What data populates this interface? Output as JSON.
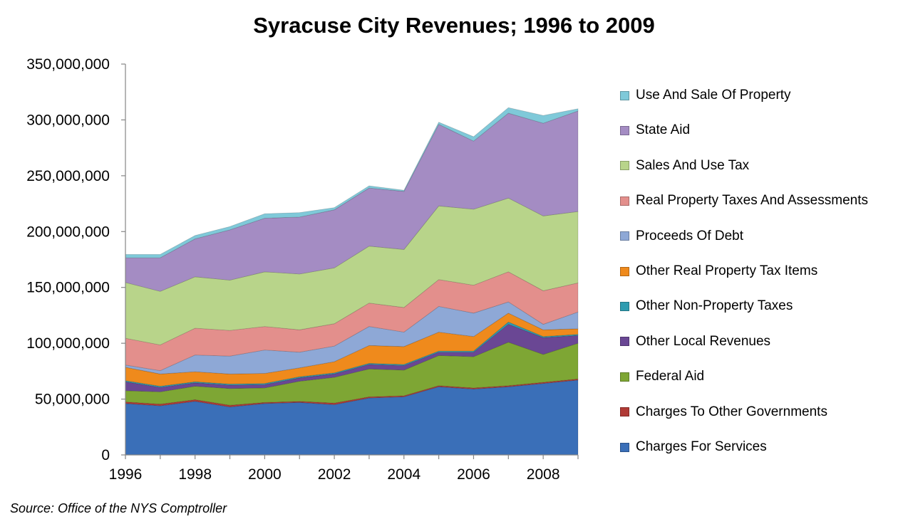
{
  "chart_data": {
    "type": "area",
    "stacked": true,
    "title": "Syracuse City Revenues; 1996 to 2009",
    "xlabel": "",
    "ylabel": "",
    "x": [
      1996,
      1997,
      1998,
      1999,
      2000,
      2001,
      2002,
      2003,
      2004,
      2005,
      2006,
      2007,
      2008,
      2009
    ],
    "x_tick_labels": [
      "1996",
      "1998",
      "2000",
      "2002",
      "2004",
      "2006",
      "2008"
    ],
    "x_ticks": [
      1996,
      1998,
      2000,
      2002,
      2004,
      2006,
      2008
    ],
    "xlim": [
      1996,
      2009
    ],
    "ylim": [
      0,
      350000000
    ],
    "y_ticks": [
      0,
      50000000,
      100000000,
      150000000,
      200000000,
      250000000,
      300000000,
      350000000
    ],
    "y_tick_labels": [
      "0",
      "50,000,000",
      "100,000,000",
      "150,000,000",
      "200,000,000",
      "250,000,000",
      "300,000,000",
      "350,000,000"
    ],
    "grid": false,
    "legend_position": "right",
    "series": [
      {
        "name": "Charges For Services",
        "color": "#3a6fb8",
        "values": [
          46000000,
          44000000,
          48000000,
          43000000,
          46000000,
          47000000,
          45000000,
          51000000,
          52000000,
          61000000,
          59000000,
          61000000,
          64000000,
          67000000
        ]
      },
      {
        "name": "Charges To Other Governments",
        "color": "#b03a35",
        "values": [
          1500000,
          1500000,
          1500000,
          1500000,
          1000000,
          1000000,
          1500000,
          1000000,
          1000000,
          1000000,
          1000000,
          1000000,
          1000000,
          1000000
        ]
      },
      {
        "name": "Federal Aid",
        "color": "#7ea634",
        "values": [
          10000000,
          11000000,
          12000000,
          15000000,
          13000000,
          18000000,
          23000000,
          25000000,
          23000000,
          27000000,
          28000000,
          39000000,
          25000000,
          32000000
        ]
      },
      {
        "name": "Other Local Revenues",
        "color": "#6a4794",
        "values": [
          8000000,
          4000000,
          3000000,
          3000000,
          3000000,
          3000000,
          3000000,
          4000000,
          4000000,
          3000000,
          4000000,
          16000000,
          15000000,
          7000000
        ]
      },
      {
        "name": "Other Non-Property Taxes",
        "color": "#2e9cb0",
        "values": [
          1000000,
          1000000,
          1000000,
          1000000,
          1000000,
          1000000,
          1000000,
          1000000,
          1000000,
          1000000,
          1000000,
          2000000,
          1000000,
          1000000
        ]
      },
      {
        "name": "Other Real Property Tax Items",
        "color": "#ef8a1c",
        "values": [
          12000000,
          11000000,
          9000000,
          9000000,
          9000000,
          8000000,
          10000000,
          16000000,
          16000000,
          17000000,
          13000000,
          8000000,
          6000000,
          5000000
        ]
      },
      {
        "name": "Proceeds Of Debt",
        "color": "#8ea8d6",
        "values": [
          2000000,
          3000000,
          15000000,
          16000000,
          21000000,
          14000000,
          14000000,
          17000000,
          13000000,
          23000000,
          21000000,
          10000000,
          5000000,
          15000000
        ]
      },
      {
        "name": "Real Property Taxes And Assessments",
        "color": "#e38f8c",
        "values": [
          24000000,
          23000000,
          24000000,
          23000000,
          21000000,
          20000000,
          20000000,
          21000000,
          22000000,
          24000000,
          25000000,
          27000000,
          30000000,
          26000000
        ]
      },
      {
        "name": "Sales And Use Tax",
        "color": "#b8d48a",
        "values": [
          50000000,
          48000000,
          46000000,
          45000000,
          49000000,
          50000000,
          50000000,
          51000000,
          52000000,
          66000000,
          68000000,
          66000000,
          67000000,
          64000000
        ]
      },
      {
        "name": "State Aid",
        "color": "#a48cc3",
        "values": [
          22000000,
          30000000,
          34000000,
          45000000,
          48000000,
          51000000,
          52000000,
          52000000,
          52000000,
          73000000,
          61000000,
          76000000,
          83000000,
          90000000
        ]
      },
      {
        "name": "Use And Sale Of Property",
        "color": "#7fc9d9",
        "values": [
          3000000,
          3000000,
          3000000,
          3000000,
          4000000,
          4000000,
          2000000,
          2000000,
          1000000,
          2000000,
          4000000,
          5000000,
          7000000,
          2000000
        ]
      }
    ],
    "source": "Source:  Office of the NYS Comptroller"
  }
}
